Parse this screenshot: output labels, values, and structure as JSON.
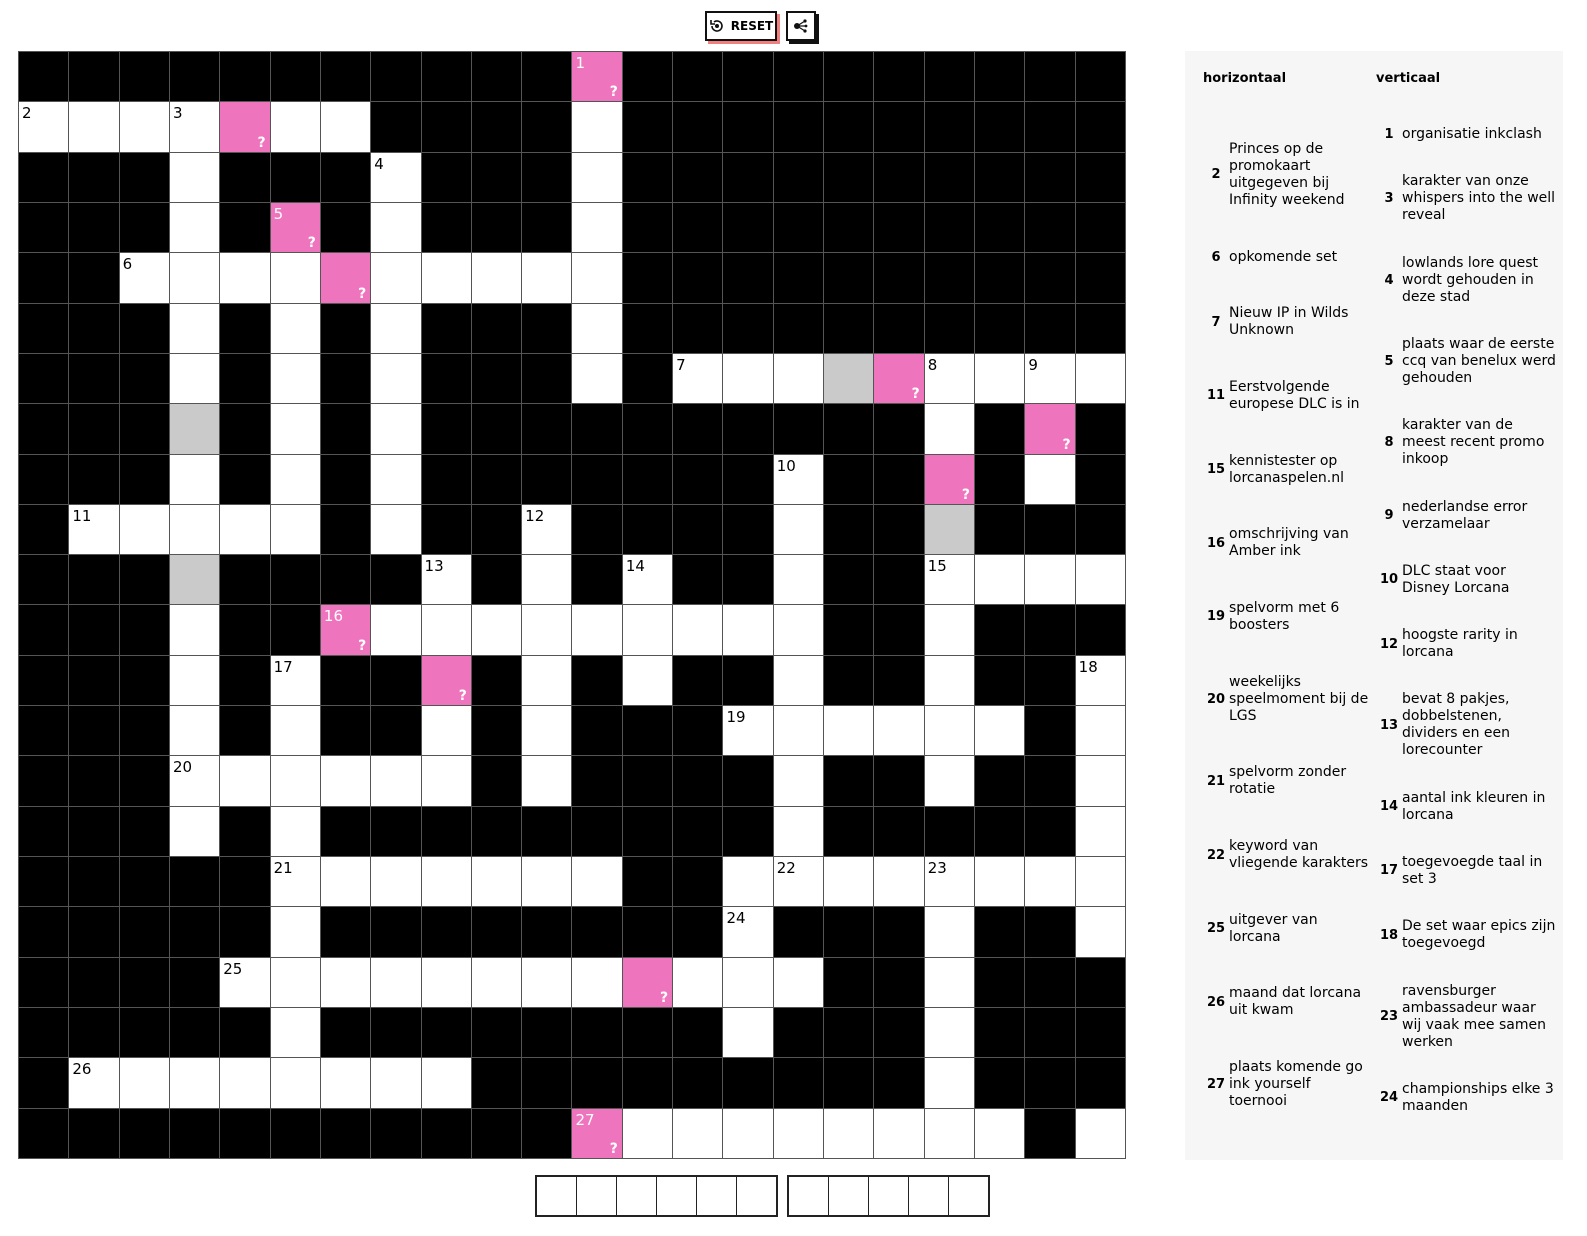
{
  "toolbar": {
    "reset_label": "RESET",
    "reset_icon": "reset-icon",
    "share_icon": "share-icon"
  },
  "grid": {
    "rows": [
      "###########p##########",
      "....p..####.##########",
      "###.###.###.##########",
      "###.#p#.###.##########",
      "##....p.....##########",
      "###.#.#.###.##########",
      "###.#.#.###.#...gp....",
      "###g#.#.##########.#p#",
      "###.#.#.#######.##p#.#",
      "#.....#.##.####.##g###",
      "###g####.#.#.##.##....",
      "###.##p.........##.###",
      "###.#.##p#.#.##.##.##.",
      "###.#.##.#.###......#.",
      "###......#.####.##.##.",
      "###.#.#########.#####.",
      "#####.......##........",
      "#####.########.###.##.",
      "####........p...##.###",
      "#####.########.###.###",
      "#........#########.###",
      "###########p........#."
    ],
    "numbers": [
      {
        "n": "1",
        "r": 0,
        "c": 11
      },
      {
        "n": "2",
        "r": 1,
        "c": 0
      },
      {
        "n": "3",
        "r": 1,
        "c": 3
      },
      {
        "n": "4",
        "r": 2,
        "c": 7
      },
      {
        "n": "5",
        "r": 3,
        "c": 5
      },
      {
        "n": "6",
        "r": 4,
        "c": 2
      },
      {
        "n": "7",
        "r": 6,
        "c": 13
      },
      {
        "n": "8",
        "r": 6,
        "c": 18
      },
      {
        "n": "9",
        "r": 6,
        "c": 20
      },
      {
        "n": "10",
        "r": 8,
        "c": 15
      },
      {
        "n": "11",
        "r": 9,
        "c": 1
      },
      {
        "n": "12",
        "r": 9,
        "c": 10
      },
      {
        "n": "13",
        "r": 10,
        "c": 8
      },
      {
        "n": "14",
        "r": 10,
        "c": 12
      },
      {
        "n": "15",
        "r": 10,
        "c": 18
      },
      {
        "n": "16",
        "r": 11,
        "c": 6
      },
      {
        "n": "17",
        "r": 12,
        "c": 5
      },
      {
        "n": "18",
        "r": 12,
        "c": 21
      },
      {
        "n": "19",
        "r": 13,
        "c": 14
      },
      {
        "n": "20",
        "r": 14,
        "c": 3
      },
      {
        "n": "21",
        "r": 16,
        "c": 5
      },
      {
        "n": "22",
        "r": 16,
        "c": 15
      },
      {
        "n": "23",
        "r": 16,
        "c": 18
      },
      {
        "n": "24",
        "r": 17,
        "c": 14
      },
      {
        "n": "25",
        "r": 18,
        "c": 4
      },
      {
        "n": "26",
        "r": 20,
        "c": 1
      },
      {
        "n": "27",
        "r": 21,
        "c": 11
      }
    ],
    "marker": "?",
    "colors": {
      "black": "#000000",
      "white": "#ffffff",
      "gray": "#cacaca",
      "pink": "#ee74be"
    }
  },
  "clues": {
    "across_title": "horizontaal",
    "down_title": "verticaal",
    "across": [
      {
        "n": "2",
        "text": "Princes op de promokaart uitgegeven bij Infinity weekend"
      },
      {
        "n": "6",
        "text": "opkomende set"
      },
      {
        "n": "7",
        "text": "Nieuw IP in Wilds Unknown"
      },
      {
        "n": "11",
        "text": "Eerstvolgende europese DLC is in"
      },
      {
        "n": "15",
        "text": "kennistester op lorcanaspelen.nl"
      },
      {
        "n": "16",
        "text": "omschrijving van Amber ink"
      },
      {
        "n": "19",
        "text": "spelvorm met 6 boosters"
      },
      {
        "n": "20",
        "text": "weekelijks speelmoment bij de LGS"
      },
      {
        "n": "21",
        "text": "spelvorm zonder rotatie"
      },
      {
        "n": "22",
        "text": "keyword van vliegende karakters"
      },
      {
        "n": "25",
        "text": "uitgever van lorcana"
      },
      {
        "n": "26",
        "text": "maand dat lorcana uit kwam"
      },
      {
        "n": "27",
        "text": "plaats komende go ink yourself toernooi"
      }
    ],
    "down": [
      {
        "n": "1",
        "text": "organisatie inkclash"
      },
      {
        "n": "3",
        "text": "karakter van onze whispers into the well reveal"
      },
      {
        "n": "4",
        "text": "lowlands lore quest wordt gehouden in deze stad"
      },
      {
        "n": "5",
        "text": "plaats waar de eerste ccq van benelux werd gehouden"
      },
      {
        "n": "8",
        "text": "karakter van de meest recent promo inkoop"
      },
      {
        "n": "9",
        "text": "nederlandse error verzamelaar"
      },
      {
        "n": "10",
        "text": "DLC staat voor Disney Lorcana"
      },
      {
        "n": "12",
        "text": "hoogste rarity in lorcana"
      },
      {
        "n": "13",
        "text": "bevat 8 pakjes, dobbelstenen, dividers en een lorecounter"
      },
      {
        "n": "14",
        "text": "aantal ink kleuren in lorcana"
      },
      {
        "n": "17",
        "text": "toegevoegde taal in set 3"
      },
      {
        "n": "18",
        "text": "De set waar epics zijn toegevoegd"
      },
      {
        "n": "23",
        "text": "ravensburger ambassadeur waar wij vaak mee samen werken"
      },
      {
        "n": "24",
        "text": "championships elke 3 maanden"
      }
    ]
  },
  "answer": {
    "groups": [
      6,
      5
    ]
  }
}
